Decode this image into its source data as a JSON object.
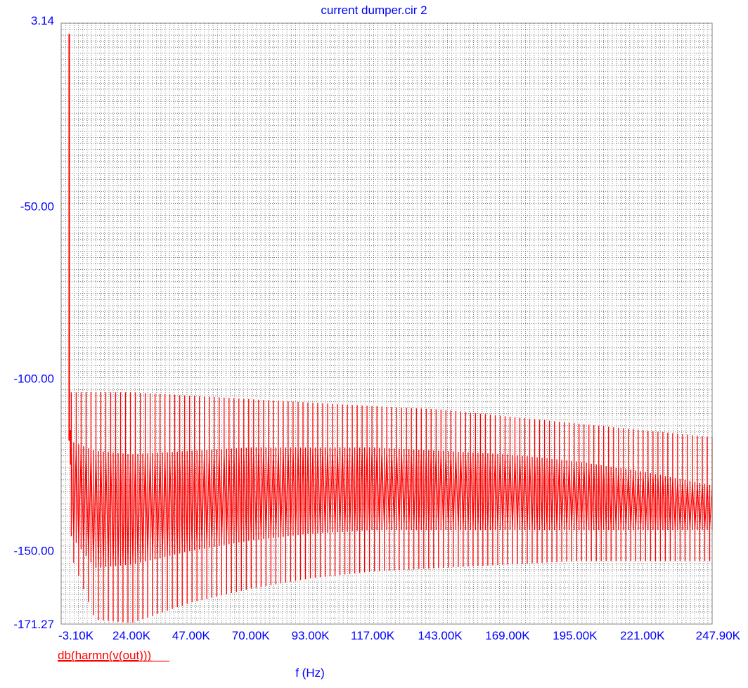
{
  "chart_data": {
    "type": "line",
    "title": "current dumper.cir 2",
    "xlabel": "f (Hz)",
    "ylabel": "",
    "x_tick_labels": [
      "-3.10K",
      "24.00K",
      "47.00K",
      "70.00K",
      "93.00K",
      "117.00K",
      "143.00K",
      "169.00K",
      "195.00K",
      "221.00K",
      "247.90K"
    ],
    "x_ticks": [
      -3100,
      24000,
      47000,
      70000,
      93000,
      117000,
      143000,
      169000,
      195000,
      221000,
      247900
    ],
    "y_tick_labels": [
      "3.14",
      "-50.00",
      "-100.00",
      "-150.00",
      "-171.27"
    ],
    "y_ticks": [
      3.14,
      -50,
      -100,
      -150,
      -171.27
    ],
    "xlim": [
      -3100,
      247900
    ],
    "ylim": [
      -171.27,
      3.14
    ],
    "grid": true,
    "series": [
      {
        "name": "db(harmn(v(out)))",
        "color": "#ff0000",
        "fundamental": {
          "f": 0,
          "db": 0
        },
        "points": [
          {
            "f": 0,
            "db": 0
          },
          {
            "f": 0,
            "db": -116
          },
          {
            "f": 1000,
            "db": -104
          },
          {
            "f": 5000,
            "db": -160
          },
          {
            "f": 10000,
            "db": -165
          },
          {
            "f": 15000,
            "db": -171
          },
          {
            "f": 20000,
            "db": -168
          },
          {
            "f": 30000,
            "db": -162
          },
          {
            "f": 50000,
            "db": -158
          },
          {
            "f": 80000,
            "db": -154
          },
          {
            "f": 120000,
            "db": -152
          },
          {
            "f": 160000,
            "db": -151
          },
          {
            "f": 200000,
            "db": -152
          },
          {
            "f": 247900,
            "db": -153
          }
        ],
        "envelope": {
          "f": [
            0,
            10000,
            24000,
            47000,
            70000,
            93000,
            117000,
            143000,
            169000,
            195000,
            221000,
            247900
          ],
          "upper": [
            -104,
            -104,
            -104,
            -105,
            -106,
            -107,
            -108,
            -109,
            -111,
            -113,
            -115,
            -117
          ],
          "inner_upper": [
            -118,
            -121,
            -122,
            -121,
            -120,
            -120,
            -120,
            -121,
            -122,
            -124,
            -127,
            -131
          ],
          "inner_lower": [
            -145,
            -155,
            -154,
            -150,
            -147,
            -145,
            -144,
            -144,
            -144,
            -144,
            -144,
            -144
          ],
          "lower": [
            -150,
            -170,
            -171,
            -165,
            -161,
            -158,
            -156,
            -155,
            -154,
            -153,
            -153,
            -153
          ]
        }
      }
    ]
  }
}
